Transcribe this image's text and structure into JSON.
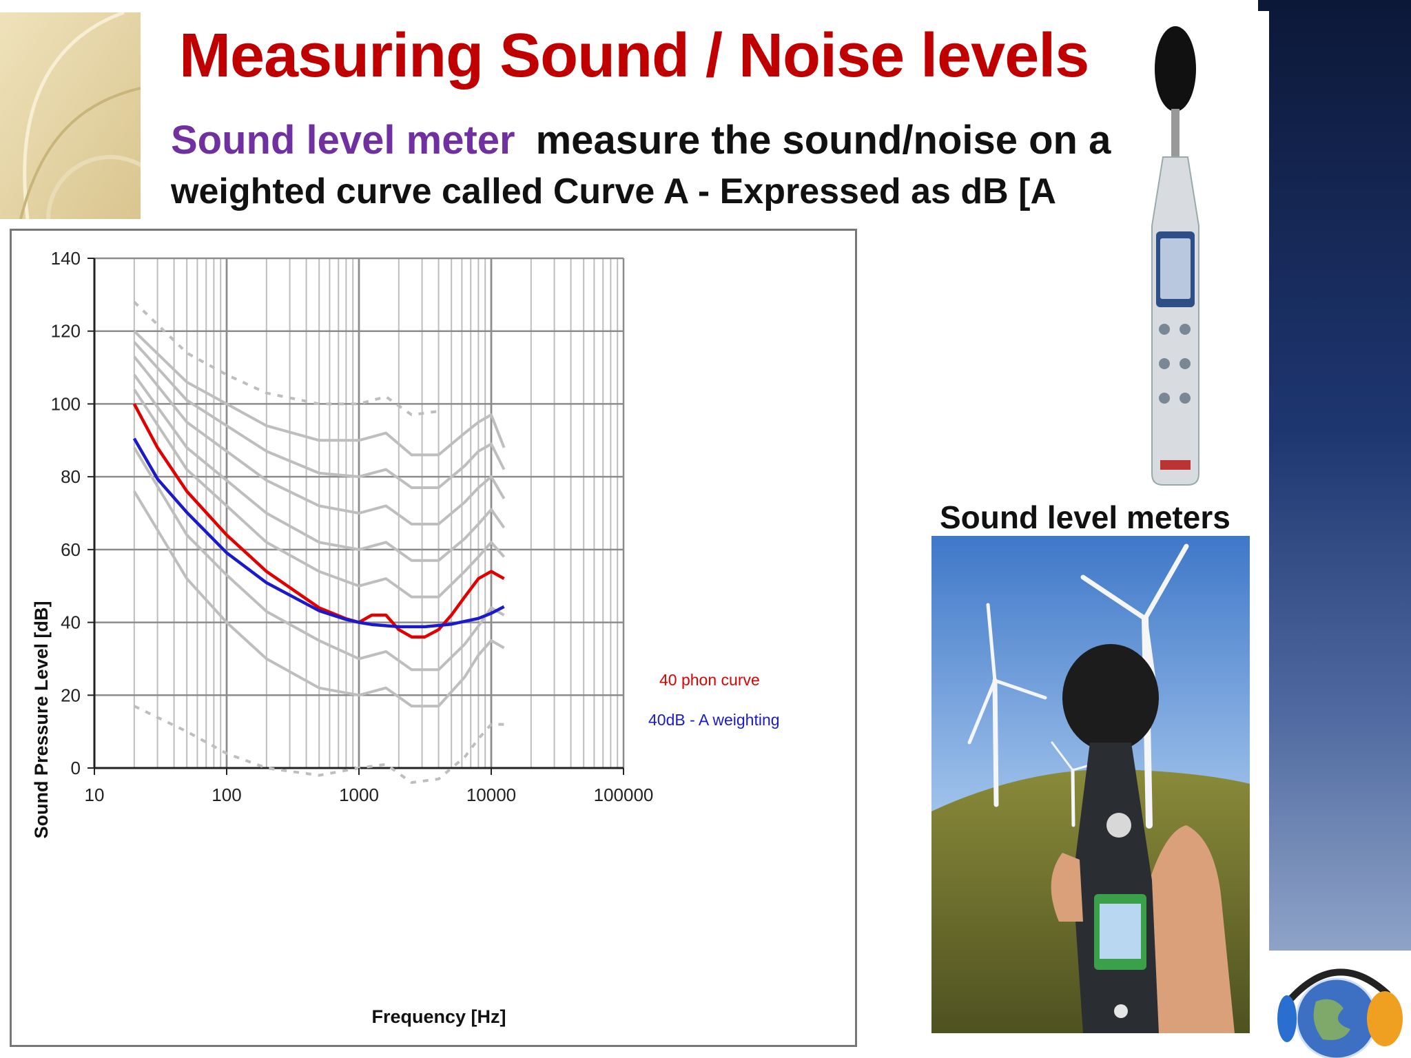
{
  "slide": {
    "title": "Measuring Sound / Noise levels",
    "subtitle_term": "Sound level meter",
    "subtitle_rest": "measure the sound/noise  on a",
    "subtitle_line2": "weighted curve called Curve A   -  Expressed as  dB [A",
    "photo_caption": "Sound level meters"
  },
  "colors": {
    "title": "#c00000",
    "term": "#7030a0",
    "phon_curve": "#e00000",
    "a_weighting": "#1a1acc",
    "contours": "#bebebe"
  },
  "icons": [
    "corner-arc-decoration-icon",
    "sound-level-meter-device-icon",
    "wind-turbine-photo-icon",
    "globe-headphones-logo-icon"
  ],
  "chart_data": {
    "type": "line",
    "xlabel": "Frequency [Hz]",
    "ylabel": "Sound Pressure Level [dB]",
    "x_scale": "log",
    "xlim": [
      10,
      100000
    ],
    "ylim": [
      0,
      140
    ],
    "x_ticks": [
      "10",
      "100",
      "1000",
      "10000",
      "100000"
    ],
    "y_ticks": [
      "0",
      "20",
      "40",
      "60",
      "80",
      "100",
      "120",
      "140"
    ],
    "grid": true,
    "series": [
      {
        "name": "40 phon curve",
        "x": [
          20,
          30,
          50,
          100,
          200,
          500,
          800,
          1000,
          1250,
          1600,
          2000,
          2500,
          3150,
          4000,
          5000,
          6300,
          8000,
          10000,
          12500
        ],
        "y": [
          100,
          88,
          76,
          64,
          54,
          44,
          41,
          40,
          42,
          42,
          38,
          36,
          36,
          38,
          42,
          47,
          52,
          54,
          52
        ]
      },
      {
        "name": "40dB - A weighting",
        "x": [
          20,
          30,
          50,
          100,
          200,
          500,
          800,
          1000,
          1250,
          2000,
          3150,
          5000,
          8000,
          10000,
          12500
        ],
        "y": [
          90.5,
          79.4,
          70.2,
          59.1,
          50.9,
          43.2,
          40.8,
          40,
          39.4,
          38.8,
          38.8,
          39.5,
          41.1,
          42.5,
          44.3
        ]
      }
    ],
    "contours": [
      {
        "x": [
          20,
          50,
          100,
          200,
          500,
          1000,
          1600,
          2500,
          4000,
          6300,
          8000,
          10000,
          12500
        ],
        "y": [
          17,
          10,
          4,
          0,
          -2,
          0,
          1,
          -4,
          -3,
          3,
          8,
          12,
          12
        ]
      },
      {
        "x": [
          20,
          50,
          100,
          200,
          500,
          1000,
          1600,
          2500,
          4000,
          6300,
          8000,
          10000,
          12500
        ],
        "y": [
          76,
          52,
          40,
          30,
          22,
          20,
          22,
          17,
          17,
          25,
          31,
          35,
          33
        ]
      },
      {
        "x": [
          20,
          50,
          100,
          200,
          500,
          1000,
          1600,
          2500,
          4000,
          6300,
          8000,
          10000,
          12500
        ],
        "y": [
          88,
          64,
          53,
          43,
          35,
          30,
          32,
          27,
          27,
          34,
          39,
          44,
          42
        ]
      },
      {
        "x": [
          20,
          50,
          100,
          200,
          500,
          1000,
          1600,
          2500,
          4000,
          6300,
          8000,
          10000,
          12500
        ],
        "y": [
          104,
          82,
          72,
          62,
          54,
          50,
          52,
          47,
          47,
          54,
          58,
          62,
          58
        ]
      },
      {
        "x": [
          20,
          50,
          100,
          200,
          500,
          1000,
          1600,
          2500,
          4000,
          6300,
          8000,
          10000,
          12500
        ],
        "y": [
          108,
          88,
          79,
          70,
          62,
          60,
          62,
          57,
          57,
          63,
          67,
          71,
          66
        ]
      },
      {
        "x": [
          20,
          50,
          100,
          200,
          500,
          1000,
          1600,
          2500,
          4000,
          6300,
          8000,
          10000,
          12500
        ],
        "y": [
          113,
          95,
          87,
          79,
          72,
          70,
          72,
          67,
          67,
          73,
          77,
          80,
          74
        ]
      },
      {
        "x": [
          20,
          50,
          100,
          200,
          500,
          1000,
          1600,
          2500,
          4000,
          6300,
          8000,
          10000,
          12500
        ],
        "y": [
          117,
          101,
          94,
          87,
          81,
          80,
          82,
          77,
          77,
          83,
          87,
          89,
          82
        ]
      },
      {
        "x": [
          20,
          50,
          100,
          200,
          500,
          1000,
          1600,
          2500,
          4000,
          6300,
          8000,
          10000,
          12500
        ],
        "y": [
          120,
          106,
          100,
          94,
          90,
          90,
          92,
          86,
          86,
          92,
          95,
          97,
          88
        ]
      },
      {
        "x": [
          20,
          50,
          100,
          200,
          500,
          1000,
          1600,
          2500,
          4000
        ],
        "y": [
          128,
          114,
          108,
          103,
          100,
          100,
          102,
          97,
          98
        ]
      }
    ]
  }
}
